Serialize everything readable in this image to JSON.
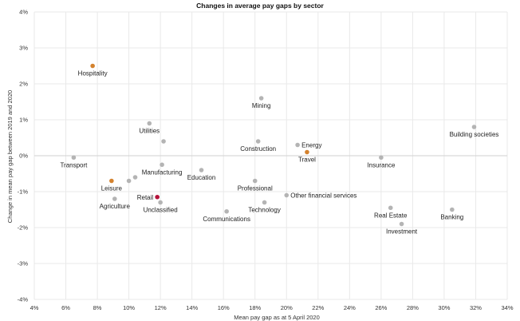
{
  "chart_data": {
    "type": "scatter",
    "title": "Changes in average pay gaps by sector",
    "xlabel": "Mean pay gap as at 5 April 2020",
    "ylabel": "Change in mean pay gap between 2019 and 2020",
    "xlim": [
      4,
      34
    ],
    "ylim": [
      -4,
      4
    ],
    "x_ticks": [
      4,
      6,
      8,
      10,
      12,
      14,
      16,
      18,
      20,
      22,
      24,
      26,
      28,
      30,
      32,
      34
    ],
    "y_ticks": [
      -4,
      -3,
      -2,
      -1,
      0,
      1,
      2,
      3,
      4
    ],
    "x_tick_labels": [
      "4%",
      "6%",
      "8%",
      "10%",
      "12%",
      "14%",
      "16%",
      "18%",
      "20%",
      "22%",
      "24%",
      "26%",
      "28%",
      "30%",
      "32%",
      "34%"
    ],
    "y_tick_labels": [
      "-4%",
      "-3%",
      "-2%",
      "-1%",
      "0%",
      "1%",
      "2%",
      "3%",
      "4%"
    ],
    "grid": true,
    "colors": {
      "grey": "#b4b4b4",
      "orange": "#d4822e",
      "red": "#b5123a"
    },
    "points": [
      {
        "label": "Hospitality",
        "x": 7.7,
        "y": 2.5,
        "color": "orange",
        "label_pos": "below"
      },
      {
        "label": "Transport",
        "x": 6.5,
        "y": -0.05,
        "color": "grey",
        "label_pos": "below"
      },
      {
        "label": "Leisure",
        "x": 8.9,
        "y": -0.7,
        "color": "orange",
        "label_pos": "below"
      },
      {
        "label": "Agriculture",
        "x": 9.1,
        "y": -1.2,
        "color": "grey",
        "label_pos": "below"
      },
      {
        "label": "",
        "x": 10.0,
        "y": -0.7,
        "color": "grey",
        "label_pos": "none"
      },
      {
        "label": "",
        "x": 10.4,
        "y": -0.6,
        "color": "grey",
        "label_pos": "none"
      },
      {
        "label": "Utilities",
        "x": 11.3,
        "y": 0.9,
        "color": "grey",
        "label_pos": "below"
      },
      {
        "label": "",
        "x": 12.2,
        "y": 0.4,
        "color": "grey",
        "label_pos": "none"
      },
      {
        "label": "Manufacturing",
        "x": 12.1,
        "y": -0.25,
        "color": "grey",
        "label_pos": "below"
      },
      {
        "label": "Retail",
        "x": 11.8,
        "y": -1.15,
        "color": "red",
        "label_pos": "left"
      },
      {
        "label": "Unclassified",
        "x": 12.0,
        "y": -1.3,
        "color": "grey",
        "label_pos": "below"
      },
      {
        "label": "Education",
        "x": 14.6,
        "y": -0.4,
        "color": "grey",
        "label_pos": "below"
      },
      {
        "label": "Communications",
        "x": 16.2,
        "y": -1.55,
        "color": "grey",
        "label_pos": "below"
      },
      {
        "label": "Mining",
        "x": 18.4,
        "y": 1.6,
        "color": "grey",
        "label_pos": "below"
      },
      {
        "label": "Construction",
        "x": 18.2,
        "y": 0.4,
        "color": "grey",
        "label_pos": "below"
      },
      {
        "label": "Professional",
        "x": 18.0,
        "y": -0.7,
        "color": "grey",
        "label_pos": "below"
      },
      {
        "label": "Technology",
        "x": 18.6,
        "y": -1.3,
        "color": "grey",
        "label_pos": "below"
      },
      {
        "label": "Other financial services",
        "x": 20.0,
        "y": -1.1,
        "color": "grey",
        "label_pos": "right"
      },
      {
        "label": "Energy",
        "x": 20.7,
        "y": 0.3,
        "color": "grey",
        "label_pos": "right"
      },
      {
        "label": "Travel",
        "x": 21.3,
        "y": 0.1,
        "color": "orange",
        "label_pos": "below"
      },
      {
        "label": "Insurance",
        "x": 26.0,
        "y": -0.05,
        "color": "grey",
        "label_pos": "below"
      },
      {
        "label": "Real Estate",
        "x": 26.6,
        "y": -1.45,
        "color": "grey",
        "label_pos": "below"
      },
      {
        "label": "Investment",
        "x": 27.3,
        "y": -1.9,
        "color": "grey",
        "label_pos": "below"
      },
      {
        "label": "Banking",
        "x": 30.5,
        "y": -1.5,
        "color": "grey",
        "label_pos": "below"
      },
      {
        "label": "Building societies",
        "x": 31.9,
        "y": 0.8,
        "color": "grey",
        "label_pos": "below"
      }
    ]
  }
}
